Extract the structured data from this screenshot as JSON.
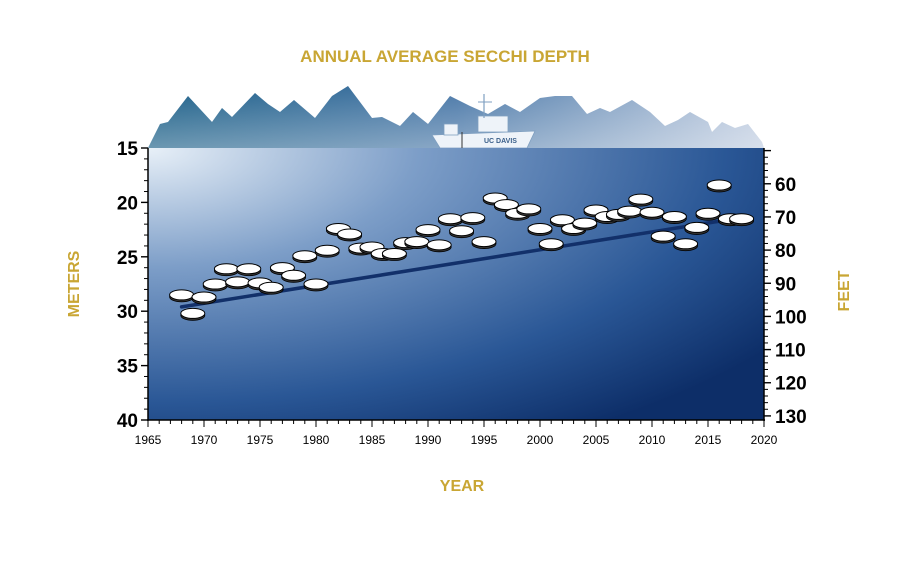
{
  "chart_data": {
    "type": "scatter",
    "title": "ANNUAL AVERAGE SECCHI DEPTH",
    "xlabel": "YEAR",
    "ylabel_left": "METERS",
    "ylabel_right": "FEET",
    "xlim": [
      1965,
      2020
    ],
    "ylim_meters": [
      15,
      40
    ],
    "y_inverted": true,
    "x_ticks": [
      1965,
      1970,
      1975,
      1980,
      1985,
      1990,
      1995,
      2000,
      2005,
      2010,
      2015,
      2020
    ],
    "y_ticks_meters": [
      15,
      20,
      25,
      30,
      35,
      40
    ],
    "y_ticks_feet": [
      60,
      70,
      80,
      90,
      100,
      110,
      120,
      130
    ],
    "series": [
      {
        "name": "Annual average Secchi depth (m)",
        "x": [
          1968,
          1969,
          1970,
          1971,
          1972,
          1973,
          1974,
          1975,
          1976,
          1977,
          1978,
          1979,
          1980,
          1981,
          1982,
          1983,
          1984,
          1985,
          1986,
          1987,
          1988,
          1989,
          1990,
          1991,
          1992,
          1993,
          1994,
          1995,
          1996,
          1997,
          1998,
          1999,
          2000,
          2001,
          2002,
          2003,
          2004,
          2005,
          2006,
          2007,
          2008,
          2009,
          2010,
          2011,
          2012,
          2013,
          2014,
          2015,
          2016,
          2017,
          2018
        ],
        "values": [
          28.5,
          30.2,
          28.7,
          27.5,
          26.1,
          27.3,
          26.1,
          27.4,
          27.8,
          26.0,
          26.7,
          24.9,
          27.5,
          24.4,
          22.4,
          22.9,
          24.2,
          24.1,
          24.7,
          24.7,
          23.7,
          23.6,
          22.5,
          23.9,
          21.5,
          22.6,
          21.4,
          23.6,
          19.6,
          20.2,
          21.0,
          20.6,
          22.4,
          23.8,
          21.6,
          22.4,
          21.9,
          20.7,
          21.3,
          21.1,
          20.8,
          19.7,
          20.9,
          23.1,
          21.3,
          23.8,
          22.3,
          21.0,
          18.4,
          21.5,
          21.5
        ],
        "trend": {
          "from": [
            1968,
            29.6
          ],
          "to": [
            2018,
            21.4
          ]
        }
      }
    ],
    "logo_text": "UC DAVIS"
  }
}
